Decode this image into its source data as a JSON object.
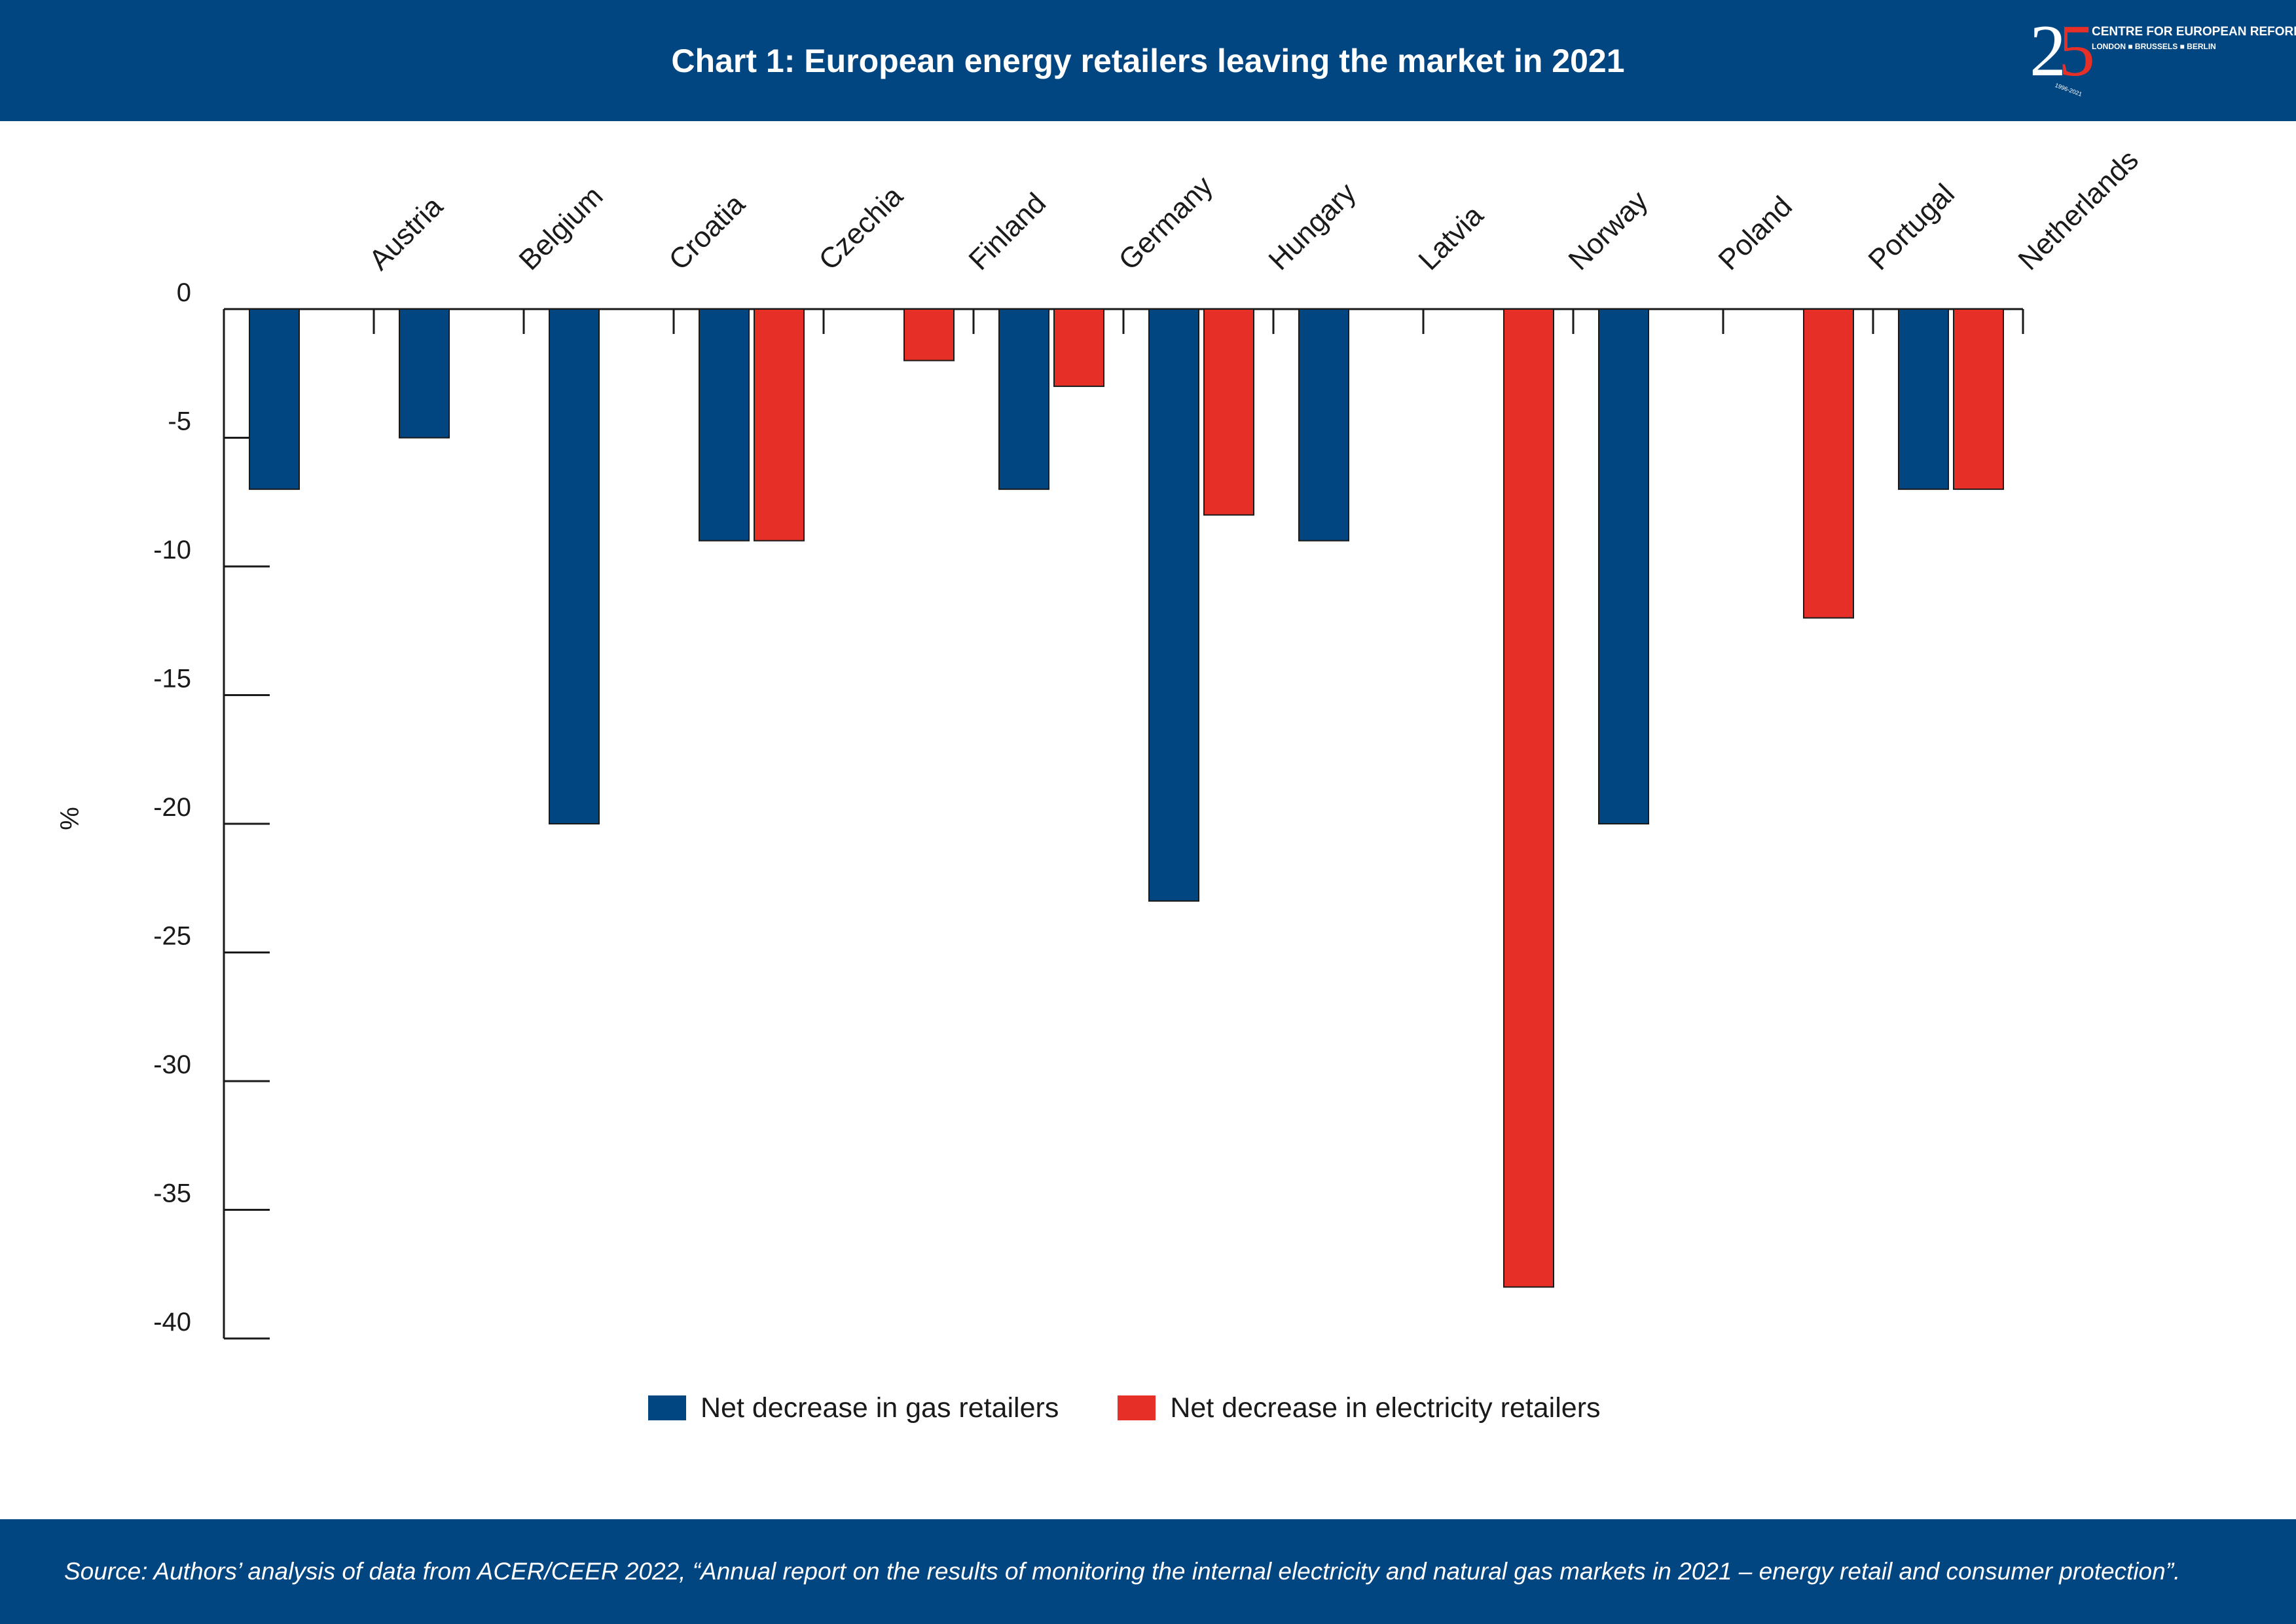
{
  "header": {
    "title": "Chart 1: European energy retailers leaving the market in 2021",
    "logo": {
      "digits_2": "2",
      "digits_5": "5",
      "name": "CENTRE FOR EUROPEAN REFORM",
      "cities": "LONDON ■ BRUSSELS ■ BERLIN",
      "years": "1996-2021"
    }
  },
  "colors": {
    "header_bg": "#024681",
    "gas": "#024681",
    "electricity": "#e63027"
  },
  "chart_data": {
    "type": "bar",
    "title": "Chart 1: European energy retailers leaving the market in 2021",
    "ylabel": "%",
    "ylim": [
      -40,
      0
    ],
    "yticks": [
      0,
      -5,
      -10,
      -15,
      -20,
      -25,
      -30,
      -35,
      -40
    ],
    "categories": [
      "Austria",
      "Belgium",
      "Croatia",
      "Czechia",
      "Finland",
      "Germany",
      "Hungary",
      "Latvia",
      "Norway",
      "Poland",
      "Portugal",
      "Netherlands"
    ],
    "series": [
      {
        "name": "Net decrease in gas retailers",
        "color": "#024681",
        "values": [
          -7,
          -5,
          -20,
          -9,
          null,
          -7,
          -23,
          -9,
          null,
          -20,
          null,
          -7
        ]
      },
      {
        "name": "Net decrease in electricity retailers",
        "color": "#e63027",
        "values": [
          null,
          null,
          null,
          -9,
          -2,
          -3,
          -8,
          null,
          -38,
          null,
          -12,
          -7
        ]
      }
    ],
    "legend_position": "bottom",
    "grid": false
  },
  "footer": {
    "source": "Source: Authors’ analysis of data from ACER/CEER 2022, “Annual report on the results of monitoring the internal electricity and natural gas markets in 2021 –  energy retail and consumer protection”."
  }
}
